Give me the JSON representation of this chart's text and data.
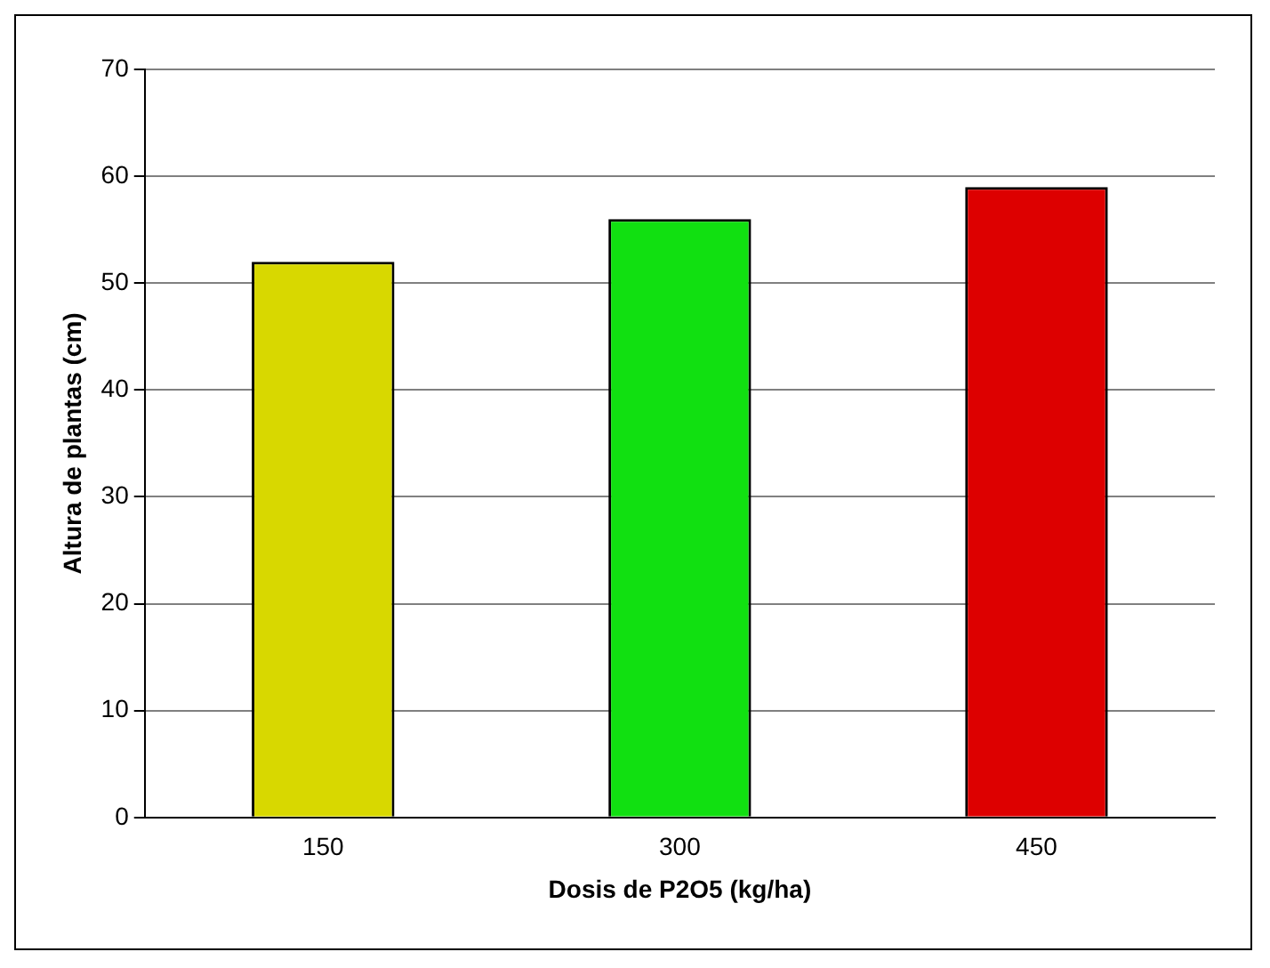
{
  "chart_data": {
    "type": "bar",
    "xlabel": "Dosis de P2O5 (kg/ha)",
    "ylabel": "Altura de plantas (cm)",
    "categories": [
      "150",
      "300",
      "450"
    ],
    "values": [
      52,
      56,
      59
    ],
    "colors": [
      "#d8d800",
      "#11e011",
      "#dd0000"
    ],
    "ylim": [
      0,
      70
    ],
    "yticks": [
      0,
      10,
      20,
      30,
      40,
      50,
      60,
      70
    ],
    "grid": "y",
    "legend": false
  }
}
